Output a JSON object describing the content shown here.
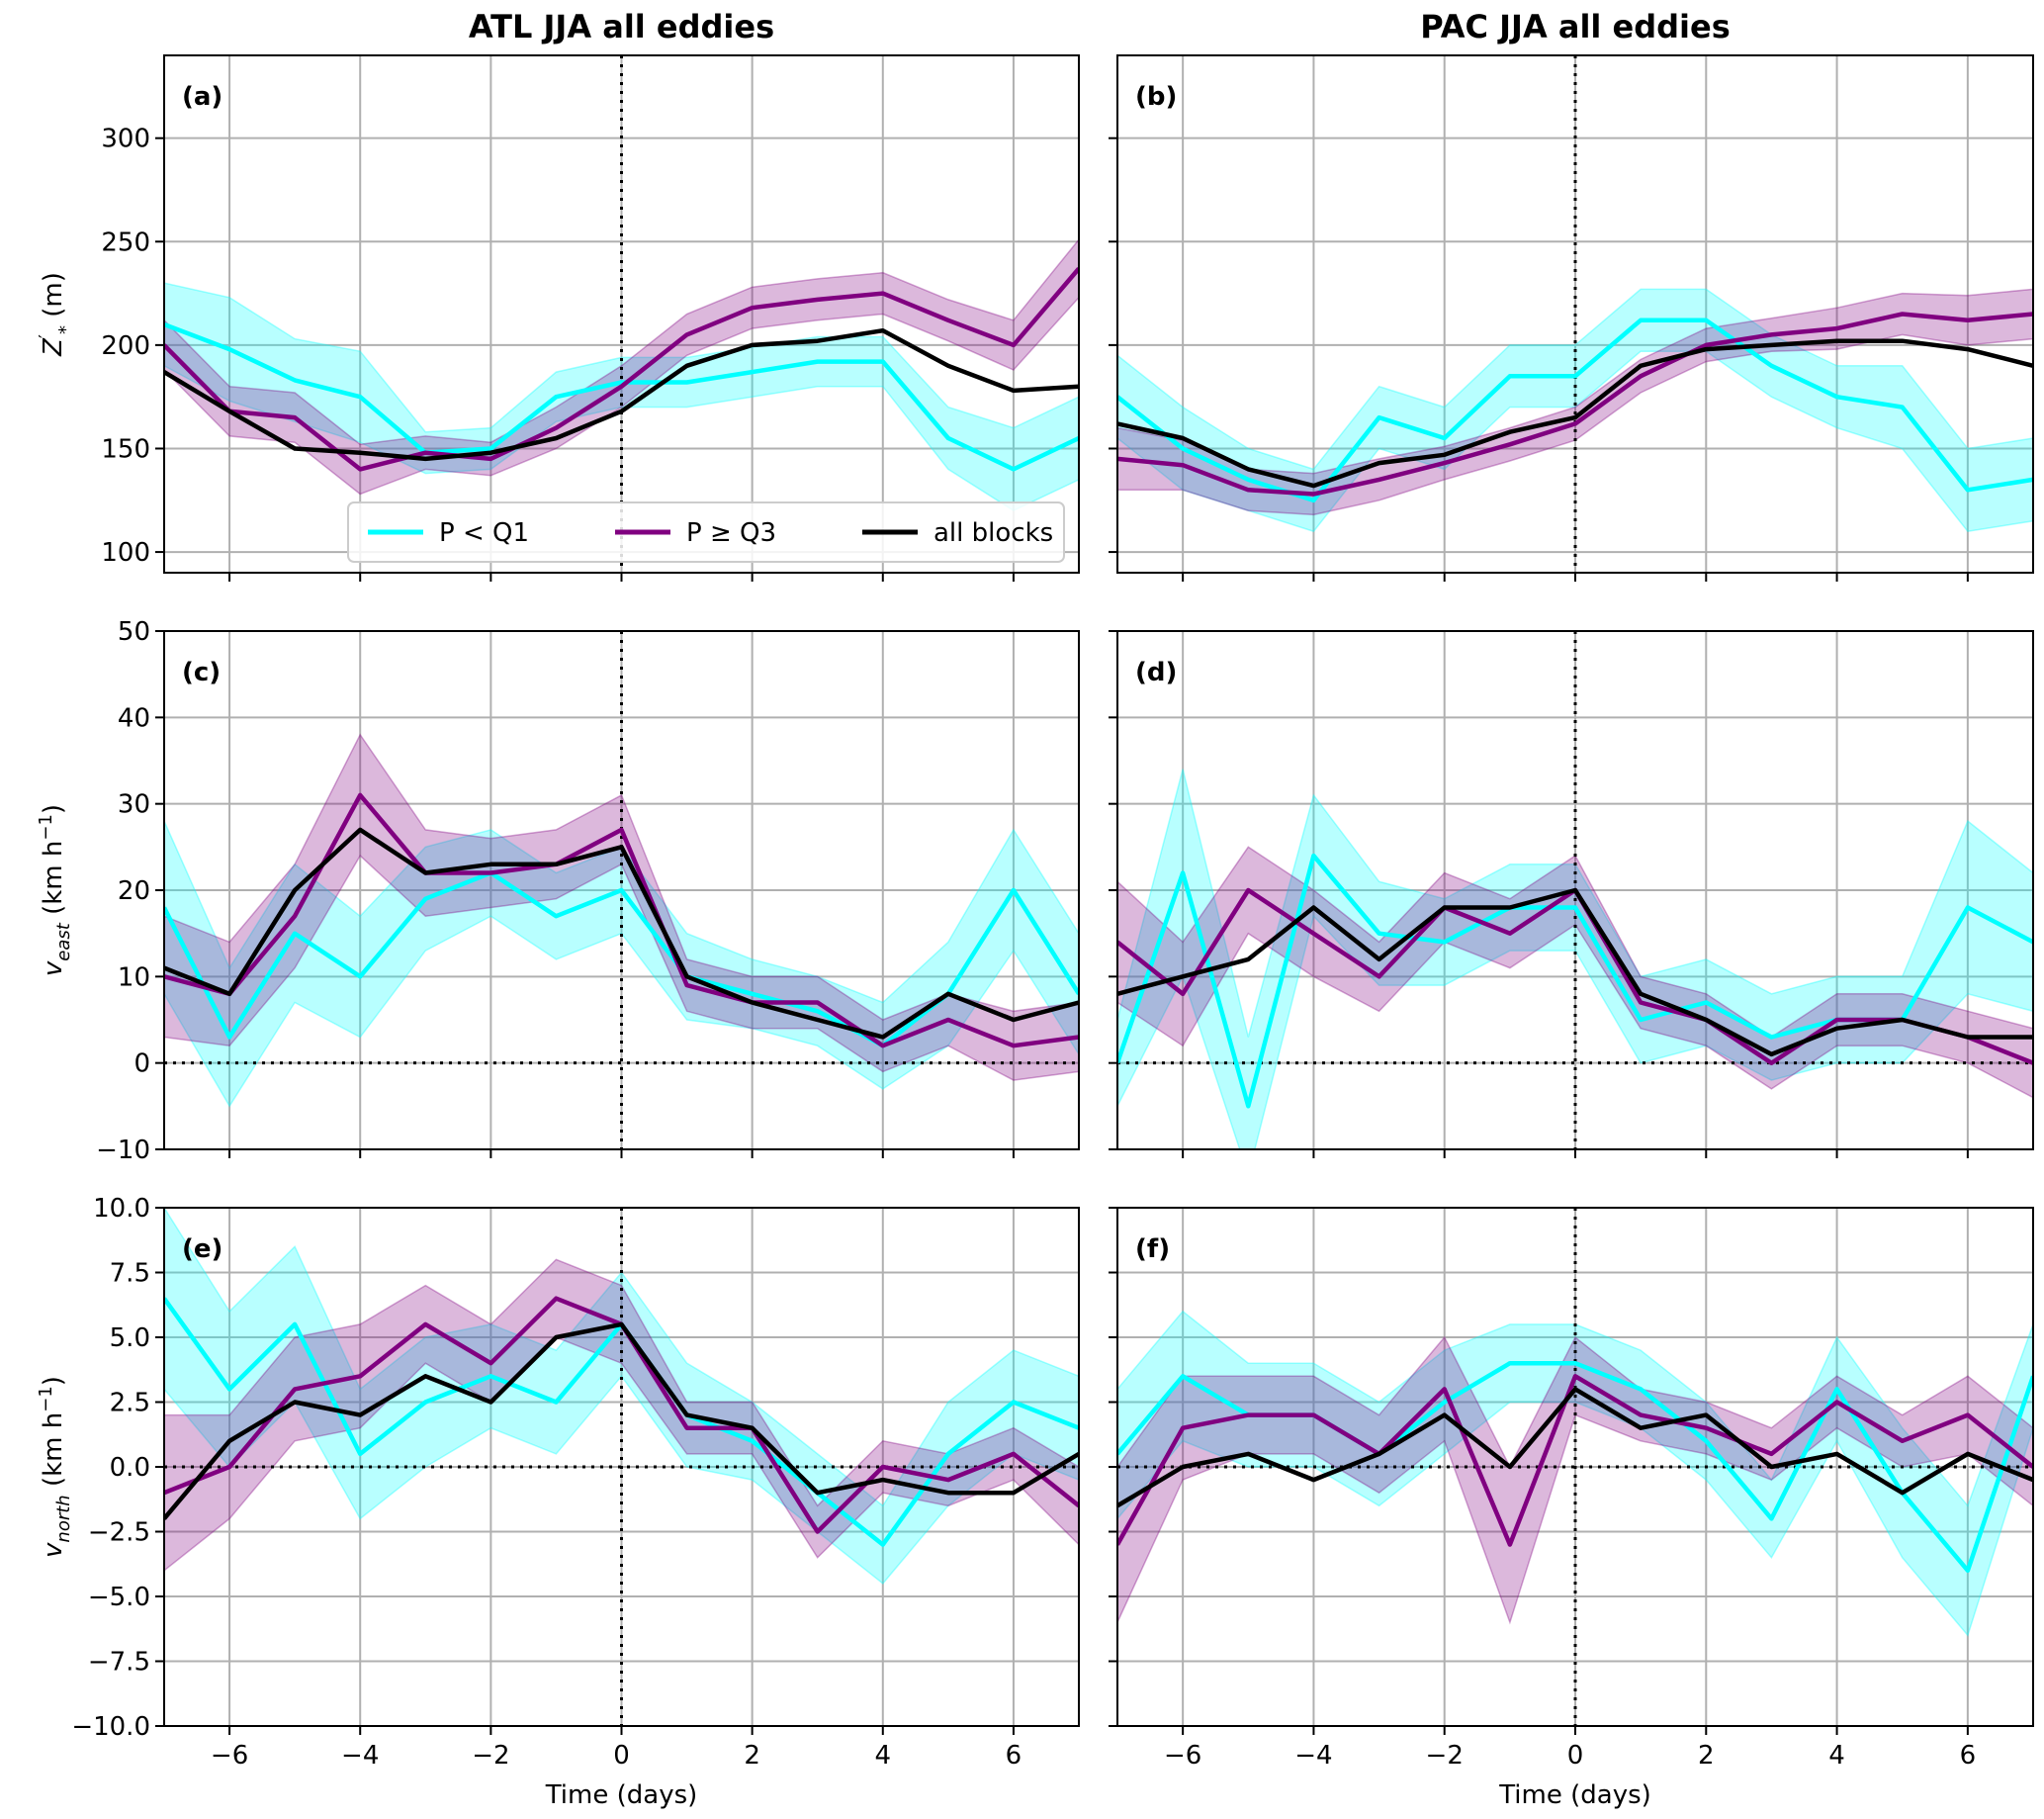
{
  "colors": {
    "low": "#00ffff",
    "high": "#800080",
    "all": "#000000"
  },
  "legend": [
    {
      "key": "low",
      "label": "P < Q1"
    },
    {
      "key": "high",
      "label": "P ≥ Q3"
    },
    {
      "key": "all",
      "label": "all blocks"
    }
  ],
  "column_titles": [
    "ATL JJA all eddies",
    "PAC JJA all eddies"
  ],
  "row_ylabels": [
    {
      "main": "Z",
      "sup": "′",
      "sub": "*",
      "unit": " (m)"
    },
    {
      "main": "v",
      "sub": "east",
      "unit": " (km h",
      "unitsup": "−1",
      "tail": ")"
    },
    {
      "main": "v",
      "sub": "north",
      "unit": " (km h",
      "unitsup": "−1",
      "tail": ")"
    }
  ],
  "xlabel": "Time (days)",
  "xticks": [
    "−6",
    "−4",
    "−2",
    "0",
    "2",
    "4",
    "6"
  ],
  "yticks": [
    [
      "100",
      "150",
      "200",
      "250",
      "300"
    ],
    [
      "−10",
      "0",
      "10",
      "20",
      "30",
      "40",
      "50"
    ],
    [
      "−10.0",
      "−7.5",
      "−5.0",
      "−2.5",
      "0.0",
      "2.5",
      "5.0",
      "7.5",
      "10.0"
    ]
  ],
  "chart_data": [
    {
      "type": "line",
      "panel": "(a)",
      "title": "ATL JJA all eddies",
      "xlabel": "",
      "ylabel": "Z′* (m)",
      "xlim": [
        -7,
        7
      ],
      "ylim": [
        90,
        340
      ],
      "grid": true,
      "legend": "bottom",
      "x": [
        -7,
        -6,
        -5,
        -4,
        -3,
        -2,
        -1,
        0,
        1,
        2,
        3,
        4,
        5,
        6,
        7
      ],
      "series": [
        {
          "name": "P < Q1",
          "values": [
            210,
            198,
            183,
            175,
            148,
            150,
            175,
            182,
            182,
            187,
            192,
            192,
            155,
            140,
            155
          ],
          "band": [
            20,
            25,
            20,
            22,
            10,
            10,
            12,
            12,
            12,
            12,
            12,
            12,
            15,
            20,
            20
          ]
        },
        {
          "name": "P ≥ Q3",
          "values": [
            200,
            168,
            165,
            140,
            148,
            145,
            160,
            180,
            205,
            218,
            222,
            225,
            212,
            200,
            237
          ],
          "band": [
            12,
            12,
            12,
            12,
            8,
            8,
            10,
            10,
            10,
            10,
            10,
            10,
            10,
            12,
            14
          ]
        },
        {
          "name": "all blocks",
          "values": [
            187,
            168,
            150,
            148,
            145,
            148,
            155,
            168,
            190,
            200,
            202,
            207,
            190,
            178,
            180
          ]
        }
      ]
    },
    {
      "type": "line",
      "panel": "(b)",
      "title": "PAC JJA all eddies",
      "xlabel": "",
      "ylabel": "",
      "xlim": [
        -7,
        7
      ],
      "ylim": [
        90,
        340
      ],
      "grid": true,
      "legend": "none",
      "x": [
        -7,
        -6,
        -5,
        -4,
        -3,
        -2,
        -1,
        0,
        1,
        2,
        3,
        4,
        5,
        6,
        7
      ],
      "series": [
        {
          "name": "P < Q1",
          "values": [
            175,
            150,
            135,
            125,
            165,
            155,
            185,
            185,
            212,
            212,
            190,
            175,
            170,
            130,
            135
          ],
          "band": [
            20,
            20,
            15,
            15,
            15,
            15,
            15,
            15,
            15,
            15,
            15,
            15,
            20,
            20,
            20
          ]
        },
        {
          "name": "P ≥ Q3",
          "values": [
            145,
            142,
            130,
            128,
            135,
            143,
            152,
            162,
            185,
            200,
            205,
            208,
            215,
            212,
            215
          ],
          "band": [
            15,
            12,
            10,
            10,
            10,
            8,
            8,
            8,
            8,
            8,
            8,
            10,
            10,
            12,
            12
          ]
        },
        {
          "name": "all blocks",
          "values": [
            162,
            155,
            140,
            132,
            143,
            147,
            158,
            165,
            190,
            198,
            200,
            202,
            202,
            198,
            190
          ]
        }
      ]
    },
    {
      "type": "line",
      "panel": "(c)",
      "title": "",
      "xlabel": "",
      "ylabel": "v_east (km h^-1)",
      "xlim": [
        -7,
        7
      ],
      "ylim": [
        -10,
        50
      ],
      "grid": true,
      "legend": "none",
      "x": [
        -7,
        -6,
        -5,
        -4,
        -3,
        -2,
        -1,
        0,
        1,
        2,
        3,
        4,
        5,
        6,
        7
      ],
      "series": [
        {
          "name": "P < Q1",
          "values": [
            18,
            3,
            15,
            10,
            19,
            22,
            17,
            20,
            10,
            8,
            6,
            2,
            8,
            20,
            8
          ],
          "band": [
            10,
            8,
            8,
            7,
            6,
            5,
            5,
            5,
            5,
            4,
            4,
            5,
            6,
            7,
            7
          ]
        },
        {
          "name": "P ≥ Q3",
          "values": [
            10,
            8,
            17,
            31,
            22,
            22,
            23,
            27,
            9,
            7,
            7,
            2,
            5,
            2,
            3
          ],
          "band": [
            7,
            6,
            6,
            7,
            5,
            4,
            4,
            4,
            3,
            3,
            3,
            3,
            3,
            4,
            4
          ]
        },
        {
          "name": "all blocks",
          "values": [
            11,
            8,
            20,
            27,
            22,
            23,
            23,
            25,
            10,
            7,
            5,
            3,
            8,
            5,
            7
          ]
        }
      ]
    },
    {
      "type": "line",
      "panel": "(d)",
      "title": "",
      "xlabel": "",
      "ylabel": "",
      "xlim": [
        -7,
        7
      ],
      "ylim": [
        -10,
        50
      ],
      "grid": true,
      "legend": "none",
      "x": [
        -7,
        -6,
        -5,
        -4,
        -3,
        -2,
        -1,
        0,
        1,
        2,
        3,
        4,
        5,
        6,
        7
      ],
      "series": [
        {
          "name": "P < Q1",
          "values": [
            0,
            22,
            -5,
            24,
            15,
            14,
            18,
            18,
            5,
            7,
            3,
            5,
            5,
            18,
            14
          ],
          "band": [
            5,
            12,
            8,
            7,
            6,
            5,
            5,
            5,
            5,
            5,
            5,
            5,
            5,
            10,
            8
          ]
        },
        {
          "name": "P ≥ Q3",
          "values": [
            14,
            8,
            20,
            15,
            10,
            18,
            15,
            20,
            7,
            5,
            0,
            5,
            5,
            3,
            0
          ],
          "band": [
            7,
            6,
            5,
            5,
            4,
            4,
            4,
            4,
            3,
            3,
            3,
            3,
            3,
            3,
            4
          ]
        },
        {
          "name": "all blocks",
          "values": [
            8,
            10,
            12,
            18,
            12,
            18,
            18,
            20,
            8,
            5,
            1,
            4,
            5,
            3,
            3
          ]
        }
      ]
    },
    {
      "type": "line",
      "panel": "(e)",
      "title": "",
      "xlabel": "Time (days)",
      "ylabel": "v_north (km h^-1)",
      "xlim": [
        -7,
        7
      ],
      "ylim": [
        -10,
        10
      ],
      "grid": true,
      "legend": "none",
      "x": [
        -7,
        -6,
        -5,
        -4,
        -3,
        -2,
        -1,
        0,
        1,
        2,
        3,
        4,
        5,
        6,
        7
      ],
      "series": [
        {
          "name": "P < Q1",
          "values": [
            6.5,
            3.0,
            5.5,
            0.5,
            2.5,
            3.5,
            2.5,
            5.5,
            2.0,
            1.0,
            -1.0,
            -3.0,
            0.5,
            2.5,
            1.5
          ],
          "band": [
            3.5,
            3,
            3,
            2.5,
            2.5,
            2,
            2,
            2,
            2,
            1.5,
            1.5,
            1.5,
            2,
            2,
            2
          ]
        },
        {
          "name": "P ≥ Q3",
          "values": [
            -1.0,
            0.0,
            3.0,
            3.5,
            5.5,
            4.0,
            6.5,
            5.5,
            1.5,
            1.5,
            -2.5,
            0.0,
            -0.5,
            0.5,
            -1.5
          ],
          "band": [
            3,
            2,
            2,
            2,
            1.5,
            1.5,
            1.5,
            1.5,
            1,
            1,
            1,
            1,
            1,
            1,
            1.5
          ]
        },
        {
          "name": "all blocks",
          "values": [
            -2.0,
            1.0,
            2.5,
            2.0,
            3.5,
            2.5,
            5.0,
            5.5,
            2.0,
            1.5,
            -1.0,
            -0.5,
            -1.0,
            -1.0,
            0.5
          ]
        }
      ]
    },
    {
      "type": "line",
      "panel": "(f)",
      "title": "",
      "xlabel": "Time (days)",
      "ylabel": "",
      "xlim": [
        -7,
        7
      ],
      "ylim": [
        -10,
        10
      ],
      "grid": true,
      "legend": "none",
      "x": [
        -7,
        -6,
        -5,
        -4,
        -3,
        -2,
        -1,
        0,
        1,
        2,
        3,
        4,
        5,
        6,
        7
      ],
      "series": [
        {
          "name": "P < Q1",
          "values": [
            0.5,
            3.5,
            2.0,
            2.0,
            0.5,
            2.5,
            4.0,
            4.0,
            3.0,
            1.0,
            -2.0,
            3.0,
            -1.0,
            -4.0,
            3.5
          ],
          "band": [
            2.5,
            2.5,
            2,
            2,
            2,
            2,
            1.5,
            1.5,
            1.5,
            1.5,
            1.5,
            2,
            2.5,
            2.5,
            2
          ]
        },
        {
          "name": "P ≥ Q3",
          "values": [
            -3.0,
            1.5,
            2.0,
            2.0,
            0.5,
            3.0,
            -3.0,
            3.5,
            2.0,
            1.5,
            0.5,
            2.5,
            1.0,
            2.0,
            0.0
          ],
          "band": [
            3,
            2,
            1.5,
            1.5,
            1.5,
            2,
            3,
            1.5,
            1,
            1,
            1,
            1,
            1,
            1.5,
            1.5
          ]
        },
        {
          "name": "all blocks",
          "values": [
            -1.5,
            0.0,
            0.5,
            -0.5,
            0.5,
            2.0,
            0.0,
            3.0,
            1.5,
            2.0,
            0.0,
            0.5,
            -1.0,
            0.5,
            -0.5
          ]
        }
      ]
    }
  ]
}
